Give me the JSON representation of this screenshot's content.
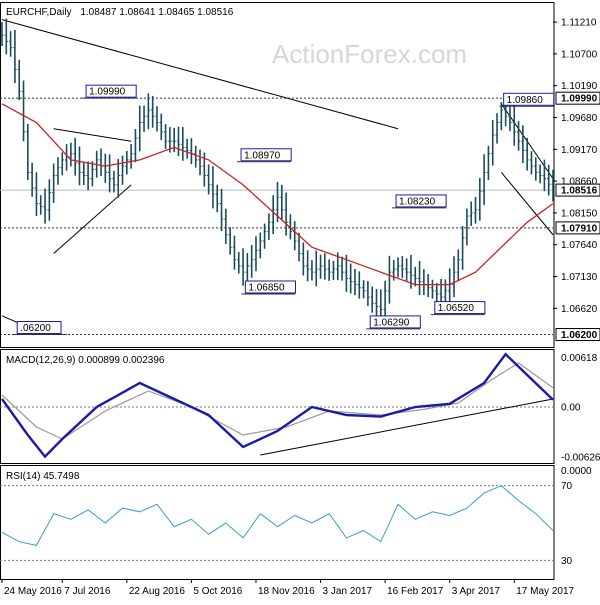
{
  "header": {
    "symbol": "EURCHF,Daily",
    "values": "1.08487 1.08641 1.08465 1.08516",
    "watermark": "ActionForex.com"
  },
  "colors": {
    "background": "#ffffff",
    "bars": "#1a4c5c",
    "ma": "#d11f1f",
    "macd": "#1a1aa8",
    "signal": "#9a9a9a",
    "trend": "#000000",
    "label_fill": "#ffffff",
    "label_border": "#1a1aa8"
  },
  "price_axis_ticks": [
    "1.11210",
    "1.10700",
    "1.10190",
    "1.09680",
    "1.09170",
    "1.08660",
    "1.08150",
    "1.07640",
    "1.07130",
    "1.06620"
  ],
  "price_axis_levels": [
    {
      "label": "1.09990",
      "y_value": 1.0999
    },
    {
      "label": "1.08516",
      "y_value": 1.08516
    },
    {
      "label": "1.07910",
      "y_value": 1.0791
    },
    {
      "label": "1.06200",
      "y_value": 1.062
    }
  ],
  "chart_annotations": [
    {
      "label": "1.09990",
      "x": 20,
      "y": 1.0999
    },
    {
      "label": "1.08970",
      "x": 56,
      "y": 1.0897
    },
    {
      "label": "1.06850",
      "x": 57,
      "y": 1.0685
    },
    {
      "label": "1.08230",
      "x": 92,
      "y": 1.0823
    },
    {
      "label": "1.06290",
      "x": 86,
      "y": 1.0629
    },
    {
      "label": "1.06520",
      "x": 101,
      "y": 1.0652
    },
    {
      "label": "1.09860",
      "x": 117,
      "y": 1.0986
    },
    {
      "label": ".06200",
      "x": 4,
      "y": 1.062
    }
  ],
  "macd_panel": {
    "title": "MACD(12,26,9) 0.000899 0.002396",
    "ticks": [
      "0.00618",
      "0.00",
      "-0.00626"
    ]
  },
  "rsi_panel": {
    "title": "RSI(14) 45.7498",
    "ticks": [
      "70",
      "30"
    ],
    "top_tick": "0.0000"
  },
  "date_ticks": [
    "24 May 2016",
    "7 Jul 2016",
    "22 Aug 2016",
    "5 Oct 2016",
    "18 Nov 2016",
    "3 Jan 2017",
    "16 Feb 2017",
    "3 Apr 2017",
    "17 May 2017"
  ],
  "chart_data": {
    "type": "line",
    "title": "EURCHF,Daily",
    "x_unit": "trading-day index",
    "price_ylim": [
      1.06,
      1.115
    ],
    "macd_ylim": [
      -0.007,
      0.007
    ],
    "rsi_ylim": [
      20,
      80
    ],
    "price": [
      [
        0,
        1.11
      ],
      [
        2,
        1.108
      ],
      [
        4,
        1.101
      ],
      [
        6,
        1.088
      ],
      [
        8,
        1.083
      ],
      [
        10,
        1.082
      ],
      [
        12,
        1.0875
      ],
      [
        14,
        1.09
      ],
      [
        16,
        1.091
      ],
      [
        18,
        1.088
      ],
      [
        20,
        1.087
      ],
      [
        22,
        1.09
      ],
      [
        24,
        1.088
      ],
      [
        26,
        1.086
      ],
      [
        28,
        1.089
      ],
      [
        30,
        1.091
      ],
      [
        32,
        1.096
      ],
      [
        34,
        1.098
      ],
      [
        36,
        1.096
      ],
      [
        38,
        1.093
      ],
      [
        40,
        1.093
      ],
      [
        42,
        1.092
      ],
      [
        44,
        1.091
      ],
      [
        46,
        1.089
      ],
      [
        48,
        1.086
      ],
      [
        50,
        1.083
      ],
      [
        52,
        1.078
      ],
      [
        54,
        1.074
      ],
      [
        56,
        1.072
      ],
      [
        58,
        1.074
      ],
      [
        60,
        1.077
      ],
      [
        62,
        1.08
      ],
      [
        64,
        1.084
      ],
      [
        66,
        1.08
      ],
      [
        68,
        1.077
      ],
      [
        70,
        1.073
      ],
      [
        72,
        1.072
      ],
      [
        74,
        1.073
      ],
      [
        76,
        1.072
      ],
      [
        78,
        1.073
      ],
      [
        80,
        1.071
      ],
      [
        82,
        1.07
      ],
      [
        84,
        1.069
      ],
      [
        86,
        1.067
      ],
      [
        88,
        1.066
      ],
      [
        90,
        1.072
      ],
      [
        92,
        1.073
      ],
      [
        94,
        1.072
      ],
      [
        96,
        1.071
      ],
      [
        98,
        1.07
      ],
      [
        100,
        1.069
      ],
      [
        102,
        1.068
      ],
      [
        104,
        1.07
      ],
      [
        106,
        1.074
      ],
      [
        108,
        1.081
      ],
      [
        110,
        1.082
      ],
      [
        112,
        1.088
      ],
      [
        114,
        1.094
      ],
      [
        116,
        1.098
      ],
      [
        118,
        1.096
      ],
      [
        120,
        1.093
      ],
      [
        122,
        1.09
      ],
      [
        124,
        1.088
      ],
      [
        126,
        1.087
      ],
      [
        128,
        1.0852
      ]
    ],
    "ma": [
      [
        0,
        1.099
      ],
      [
        8,
        1.096
      ],
      [
        16,
        1.09
      ],
      [
        24,
        1.089
      ],
      [
        32,
        1.09
      ],
      [
        40,
        1.092
      ],
      [
        48,
        1.09
      ],
      [
        56,
        1.086
      ],
      [
        64,
        1.081
      ],
      [
        72,
        1.076
      ],
      [
        80,
        1.074
      ],
      [
        88,
        1.072
      ],
      [
        96,
        1.07
      ],
      [
        104,
        1.07
      ],
      [
        110,
        1.072
      ],
      [
        116,
        1.076
      ],
      [
        122,
        1.08
      ],
      [
        128,
        1.083
      ]
    ],
    "macd": [
      [
        0,
        0.001
      ],
      [
        6,
        -0.0035
      ],
      [
        10,
        -0.0062
      ],
      [
        14,
        -0.004
      ],
      [
        22,
        0.0
      ],
      [
        32,
        0.003
      ],
      [
        40,
        0.001
      ],
      [
        48,
        -0.001
      ],
      [
        56,
        -0.005
      ],
      [
        64,
        -0.003
      ],
      [
        72,
        0.0
      ],
      [
        80,
        -0.001
      ],
      [
        88,
        -0.0012
      ],
      [
        96,
        0.0
      ],
      [
        104,
        0.0004
      ],
      [
        112,
        0.003
      ],
      [
        117,
        0.0066
      ],
      [
        122,
        0.004
      ],
      [
        128,
        0.0009
      ]
    ],
    "signal": [
      [
        0,
        0.0015
      ],
      [
        8,
        -0.0025
      ],
      [
        14,
        -0.004
      ],
      [
        24,
        -0.0005
      ],
      [
        34,
        0.002
      ],
      [
        44,
        0.0
      ],
      [
        56,
        -0.0035
      ],
      [
        66,
        -0.0025
      ],
      [
        76,
        -0.0005
      ],
      [
        88,
        -0.001
      ],
      [
        98,
        -0.0003
      ],
      [
        106,
        0.0005
      ],
      [
        114,
        0.0035
      ],
      [
        120,
        0.0055
      ],
      [
        128,
        0.0024
      ]
    ],
    "rsi": [
      [
        0,
        45
      ],
      [
        4,
        40
      ],
      [
        8,
        38
      ],
      [
        12,
        55
      ],
      [
        16,
        52
      ],
      [
        20,
        57
      ],
      [
        24,
        50
      ],
      [
        28,
        58
      ],
      [
        32,
        56
      ],
      [
        36,
        60
      ],
      [
        40,
        48
      ],
      [
        44,
        52
      ],
      [
        48,
        44
      ],
      [
        52,
        50
      ],
      [
        56,
        42
      ],
      [
        60,
        55
      ],
      [
        64,
        48
      ],
      [
        68,
        54
      ],
      [
        72,
        50
      ],
      [
        76,
        55
      ],
      [
        80,
        42
      ],
      [
        84,
        46
      ],
      [
        88,
        40
      ],
      [
        92,
        60
      ],
      [
        96,
        52
      ],
      [
        100,
        56
      ],
      [
        104,
        54
      ],
      [
        108,
        58
      ],
      [
        112,
        66
      ],
      [
        116,
        70
      ],
      [
        120,
        62
      ],
      [
        124,
        55
      ],
      [
        128,
        46
      ]
    ],
    "series": [
      {
        "name": "EURCHF",
        "ref": "price"
      },
      {
        "name": "MACD(12,26,9)",
        "ref": "macd"
      },
      {
        "name": "RSI(14)",
        "ref": "rsi"
      }
    ],
    "trendlines": [
      {
        "panel": "price",
        "from": [
          0,
          1.1125
        ],
        "to": [
          92,
          1.095
        ]
      },
      {
        "panel": "price",
        "from": [
          0,
          1.065
        ],
        "to": [
          10,
          1.062
        ]
      },
      {
        "panel": "price",
        "from": [
          12,
          1.095
        ],
        "to": [
          30,
          1.093
        ]
      },
      {
        "panel": "price",
        "from": [
          12,
          1.075
        ],
        "to": [
          30,
          1.086
        ]
      },
      {
        "panel": "price",
        "from": [
          116,
          1.099
        ],
        "to": [
          128,
          1.087
        ]
      },
      {
        "panel": "price",
        "from": [
          116,
          1.088
        ],
        "to": [
          128,
          1.078
        ]
      },
      {
        "panel": "macd",
        "from": [
          60,
          -0.006
        ],
        "to": [
          128,
          0.001
        ]
      }
    ],
    "horizontal_levels": [
      1.0999,
      1.0791,
      1.062
    ],
    "rsi_levels": [
      70,
      30
    ],
    "grid": false
  }
}
